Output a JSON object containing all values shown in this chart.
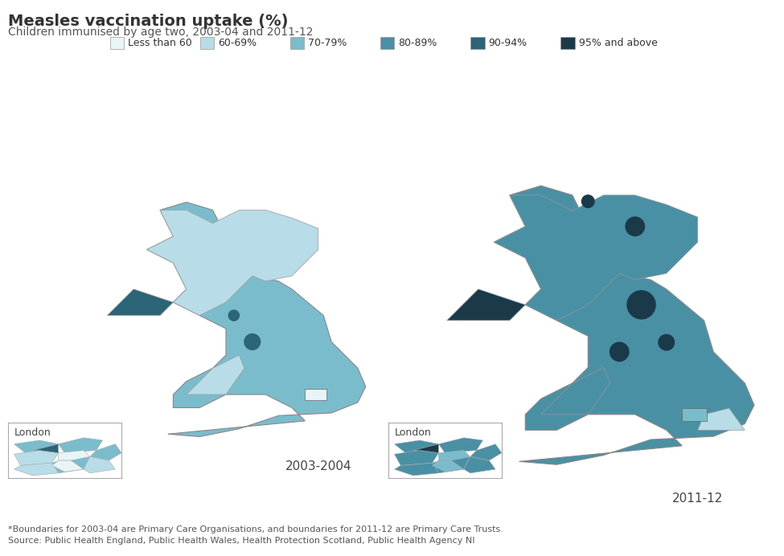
{
  "title": "Measles vaccination uptake (%)",
  "subtitle": "Children immunised by age two, 2003-04 and 2011-12",
  "footnote1": "*Boundaries for 2003-04 are Primary Care Organisations, and boundaries for 2011-12 are Primary Care Trusts.",
  "footnote2": "Source: Public Health England, Public Health Wales, Health Protection Scotland, Public Health Agency NI",
  "label_2003": "2003-2004",
  "label_2011": "2011-12",
  "london_label": "London",
  "legend_labels": [
    "Less than 60",
    "60-69%",
    "70-79%",
    "80-89%",
    "90-94%",
    "95% and above"
  ],
  "legend_colors": [
    "#e8f4f8",
    "#b8dce8",
    "#7bbccc",
    "#4a90a4",
    "#2c6478",
    "#1a3a4a"
  ],
  "background_color": "#ffffff",
  "border_color": "#aaaaaa",
  "title_fontsize": 14,
  "subtitle_fontsize": 10,
  "footnote_fontsize": 8,
  "legend_fontsize": 9
}
